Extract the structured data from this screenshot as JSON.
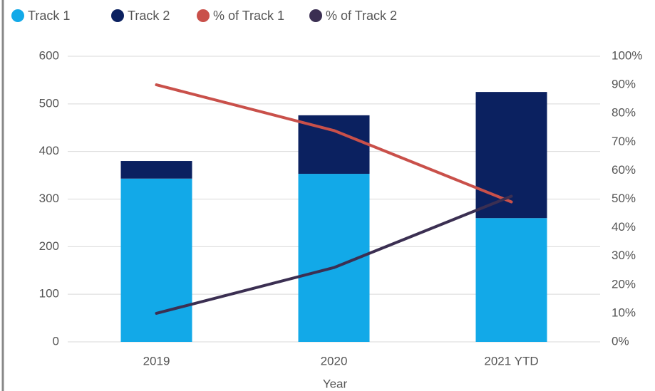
{
  "chart_data": {
    "type": "bar",
    "xlabel": "Year",
    "categories": [
      "2019",
      "2020",
      "2021 YTD"
    ],
    "stacked": true,
    "series": [
      {
        "name": "Track 1",
        "type": "bar",
        "color": "#12a9e8",
        "values": [
          343,
          353,
          260
        ]
      },
      {
        "name": "Track 2",
        "type": "bar",
        "color": "#0b2160",
        "values": [
          37,
          123,
          265
        ]
      },
      {
        "name": "% of Track 1",
        "type": "line",
        "axis": "y2",
        "color": "#c9504a",
        "values": [
          90,
          74,
          49
        ]
      },
      {
        "name": "% of Track 2",
        "type": "line",
        "axis": "y2",
        "color": "#3b2f52",
        "values": [
          10,
          26,
          51
        ]
      }
    ],
    "ylim": [
      0,
      600
    ],
    "yticks": [
      0,
      100,
      200,
      300,
      400,
      500,
      600
    ],
    "y2lim": [
      0,
      100
    ],
    "y2ticks": [
      {
        "value": 0,
        "label": "0%"
      },
      {
        "value": 10,
        "label": "10%"
      },
      {
        "value": 20,
        "label": "20%"
      },
      {
        "value": 30,
        "label": "30%"
      },
      {
        "value": 40,
        "label": "40%"
      },
      {
        "value": 50,
        "label": "50%"
      },
      {
        "value": 60,
        "label": "60%"
      },
      {
        "value": 70,
        "label": "70%"
      },
      {
        "value": 80,
        "label": "80%"
      },
      {
        "value": 90,
        "label": "90%"
      },
      {
        "value": 100,
        "label": "100%"
      }
    ],
    "grid": true,
    "legend": "top-left"
  }
}
